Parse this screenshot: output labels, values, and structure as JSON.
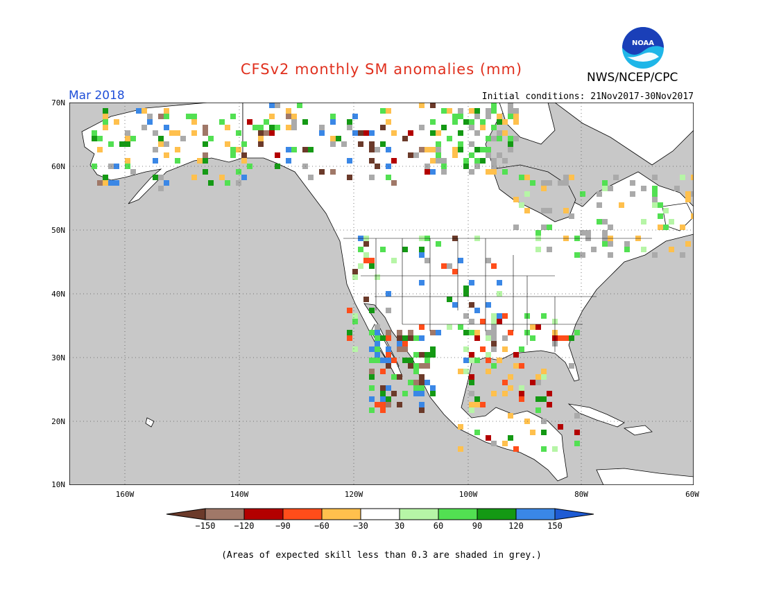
{
  "title": "CFSv2 monthly SM anomalies (mm)",
  "agency": "NWS/NCEP/CPC",
  "logo_text": "NOAA",
  "valid_month": "Mar 2018",
  "initial_conditions": "Initial conditions: 21Nov2017-30Nov2017",
  "lat_labels": [
    "70N",
    "60N",
    "50N",
    "40N",
    "30N",
    "20N",
    "10N"
  ],
  "lon_labels": [
    "160W",
    "140W",
    "120W",
    "100W",
    "80W",
    "60W"
  ],
  "colorbar": {
    "labels": [
      "-150",
      "-120",
      "-90",
      "-60",
      "-30",
      "30",
      "60",
      "90",
      "120",
      "150"
    ],
    "colors": [
      "#6b3a2a",
      "#a07868",
      "#b30000",
      "#ff4d1a",
      "#ffc04d",
      "#ffffff",
      "#b6f5a6",
      "#52e052",
      "#149914",
      "#3a87e6",
      "#1e5bd4"
    ]
  },
  "footnote": "(Areas of expected skill less than 0.3 are shaded in grey.)",
  "colors": {
    "ocean": "#c8c8c8",
    "land": "#ffffff",
    "title": "#e0301e",
    "month": "#1f4fd8"
  }
}
